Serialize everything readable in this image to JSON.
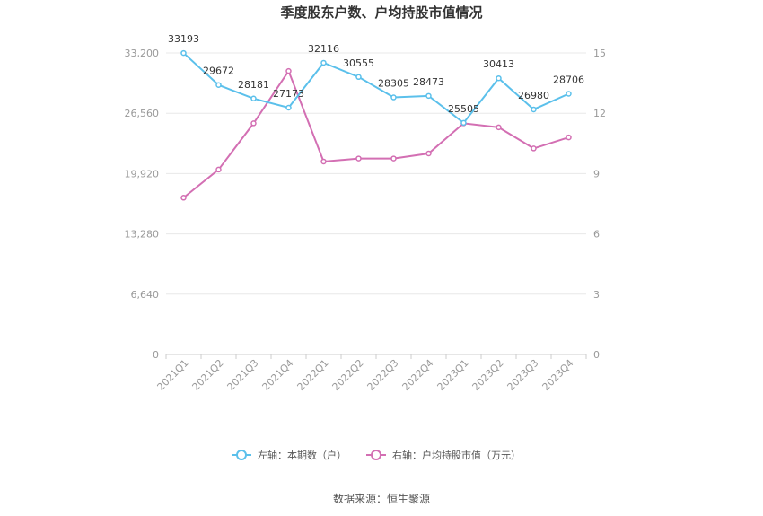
{
  "chart_data": {
    "type": "line",
    "title": "季度股东户数、户均持股市值情况",
    "categories": [
      "2021Q1",
      "2021Q2",
      "2021Q3",
      "2021Q4",
      "2022Q1",
      "2022Q2",
      "2022Q3",
      "2022Q4",
      "2023Q1",
      "2023Q2",
      "2023Q3",
      "2023Q4"
    ],
    "y_left": {
      "range": [
        0,
        33200
      ],
      "ticks": [
        "0",
        "6,640",
        "13,280",
        "19,920",
        "26,560",
        "33,200"
      ]
    },
    "y_right": {
      "range": [
        0,
        15
      ],
      "ticks": [
        "0",
        "3",
        "6",
        "9",
        "12",
        "15"
      ]
    },
    "series": [
      {
        "name": "左轴：本期数（户）",
        "axis": "left",
        "color": "#5bc0eb",
        "values": [
          33193,
          29672,
          28181,
          27173,
          32116,
          30555,
          28305,
          28473,
          25505,
          30413,
          26980,
          28706
        ],
        "labels": [
          "33193",
          "29672",
          "28181",
          "27173",
          "32116",
          "30555",
          "28305",
          "28473",
          "25505",
          "30413",
          "26980",
          "28706"
        ]
      },
      {
        "name": "右轴：户均持股市值（万元）",
        "axis": "right",
        "color": "#d36fb3",
        "values": [
          7.8,
          9.2,
          11.5,
          14.1,
          9.6,
          9.75,
          9.75,
          10.0,
          11.5,
          11.3,
          10.25,
          10.8
        ]
      }
    ],
    "grid": true,
    "legend_position": "bottom",
    "source": "数据来源：恒生聚源"
  }
}
